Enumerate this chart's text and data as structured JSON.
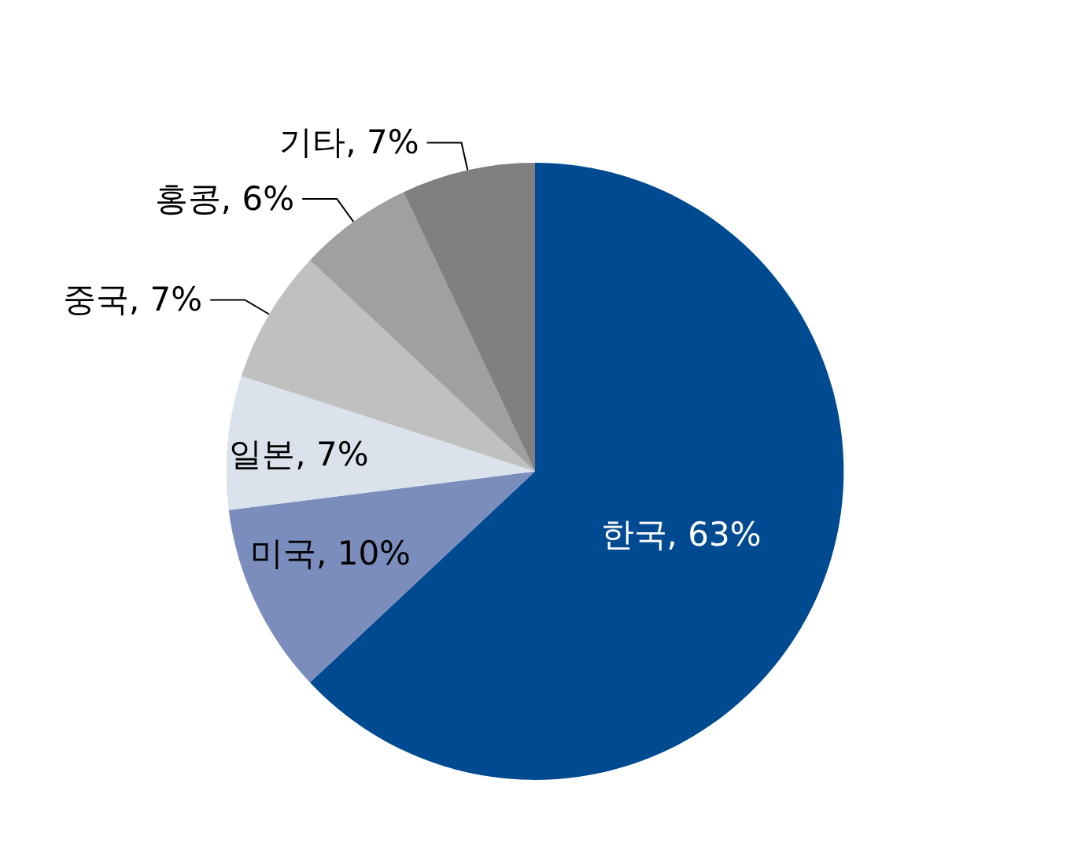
{
  "chart_data": {
    "type": "pie",
    "categories": [
      "한국",
      "미국",
      "일본",
      "중국",
      "홍콩",
      "기타"
    ],
    "values": [
      63,
      10,
      7,
      7,
      6,
      7
    ],
    "value_labels": [
      "63%",
      "10%",
      "7%",
      "7%",
      "6%",
      "7%"
    ],
    "colors": [
      "#004a91",
      "#7b8dbd",
      "#dce2eb",
      "#c0c0c0",
      "#a0a0a0",
      "#808080"
    ],
    "legend": false
  }
}
